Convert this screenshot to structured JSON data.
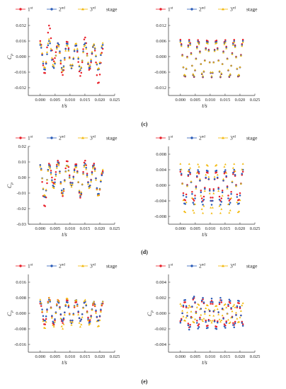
{
  "figure": {
    "row_labels": [
      "(c)",
      "(d)",
      "(e)"
    ]
  },
  "legend": {
    "entries": [
      {
        "name": "1",
        "sup": "st",
        "color": "#e8202a",
        "marker": "circle"
      },
      {
        "name": "2",
        "sup": "nd",
        "color": "#2a5bb8",
        "marker": "circle"
      },
      {
        "name": "3",
        "sup": "rd",
        "color": "#f2b705",
        "marker": "triangle"
      }
    ],
    "suffix": "stage"
  },
  "chart_data": [
    {
      "type": "scatter",
      "panel": "c-left",
      "xlabel": "t/s",
      "ylabel": "Cp",
      "grid": false,
      "xlim": [
        -0.004,
        0.025
      ],
      "ylim": [
        -0.04,
        0.04
      ],
      "xticks": [
        "0.000",
        "0.005",
        "0.010",
        "0.015",
        "0.020",
        "0.025"
      ],
      "yticks": [
        "0.032",
        "0.016",
        "0.000",
        "-0.016",
        "-0.032"
      ],
      "series": [
        {
          "name": "1st",
          "t": [
            0,
            0.0015,
            0.003,
            0.0045,
            0.006,
            0.0075,
            0.009,
            0.0105,
            0.012,
            0.0135,
            0.015,
            0.0165,
            0.018,
            0.0195,
            0.021
          ],
          "values": [
            0.016,
            -0.018,
            0.032,
            -0.005,
            0.014,
            -0.019,
            0.016,
            -0.012,
            0.012,
            -0.02,
            0.02,
            -0.014,
            0.012,
            -0.028,
            0.008
          ]
        },
        {
          "name": "2nd",
          "t": [
            0,
            0.0015,
            0.003,
            0.0045,
            0.006,
            0.0075,
            0.009,
            0.0105,
            0.012,
            0.0135,
            0.015,
            0.0165,
            0.018,
            0.0195,
            0.021
          ],
          "values": [
            0.012,
            -0.014,
            0.016,
            -0.012,
            0.014,
            -0.014,
            0.014,
            -0.012,
            0.012,
            -0.014,
            0.014,
            -0.012,
            0.012,
            -0.014,
            0.012
          ]
        },
        {
          "name": "3rd",
          "t": [
            0,
            0.0015,
            0.003,
            0.0045,
            0.006,
            0.0075,
            0.009,
            0.0105,
            0.012,
            0.0135,
            0.015,
            0.0165,
            0.018,
            0.0195,
            0.021
          ],
          "values": [
            0.014,
            -0.012,
            0.018,
            -0.01,
            0.012,
            -0.015,
            0.012,
            -0.011,
            0.014,
            -0.013,
            0.012,
            -0.01,
            0.013,
            -0.013,
            0.014
          ]
        }
      ]
    },
    {
      "type": "scatter",
      "panel": "c-right",
      "xlabel": "t/s",
      "ylabel": "",
      "grid": false,
      "xlim": [
        -0.004,
        0.025
      ],
      "ylim": [
        -0.015,
        0.015
      ],
      "xticks": [
        "0.000",
        "0.005",
        "0.010",
        "0.015",
        "0.020",
        "0.025"
      ],
      "yticks": [
        "0.012",
        "0.006",
        "0.000",
        "-0.006",
        "-0.012"
      ],
      "series": [
        {
          "name": "1st",
          "t": [
            0,
            0.0015,
            0.003,
            0.0045,
            0.006,
            0.0075,
            0.009,
            0.0105,
            0.012,
            0.0135,
            0.015,
            0.0165,
            0.018,
            0.0195,
            0.021
          ],
          "values": [
            0.0065,
            -0.008,
            0.0065,
            -0.008,
            0.0065,
            -0.008,
            0.0065,
            -0.008,
            0.0065,
            -0.008,
            0.0065,
            -0.008,
            0.0065,
            -0.008,
            0.0065
          ]
        },
        {
          "name": "2nd",
          "t": [
            0,
            0.0015,
            0.003,
            0.0045,
            0.006,
            0.0075,
            0.009,
            0.0105,
            0.012,
            0.0135,
            0.015,
            0.0165,
            0.018,
            0.0195,
            0.021
          ],
          "values": [
            0.006,
            -0.0078,
            0.006,
            -0.0078,
            0.006,
            -0.0078,
            0.006,
            -0.0078,
            0.006,
            -0.0078,
            0.006,
            -0.0078,
            0.006,
            -0.0078,
            0.006
          ]
        },
        {
          "name": "3rd",
          "t": [
            0,
            0.0015,
            0.003,
            0.0045,
            0.006,
            0.0075,
            0.009,
            0.0105,
            0.012,
            0.0135,
            0.015,
            0.0165,
            0.018,
            0.0195,
            0.021
          ],
          "values": [
            0.0055,
            -0.0075,
            0.0055,
            -0.0075,
            0.0055,
            -0.0075,
            0.0055,
            -0.0075,
            0.0055,
            -0.0075,
            0.0055,
            -0.0075,
            0.0055,
            -0.0075,
            0.0055
          ]
        }
      ]
    },
    {
      "type": "scatter",
      "panel": "d-left",
      "xlabel": "t/s",
      "ylabel": "Cp",
      "grid": false,
      "xlim": [
        -0.004,
        0.025
      ],
      "ylim": [
        -0.03,
        0.02
      ],
      "xticks": [
        "0.000",
        "0.005",
        "0.010",
        "0.015",
        "0.020",
        "0.025"
      ],
      "yticks": [
        "0.02",
        "0.01",
        "0.00",
        "-0.01",
        "-0.02",
        "-0.03"
      ],
      "series": [
        {
          "name": "1st",
          "t": [
            0,
            0.0015,
            0.003,
            0.0045,
            0.006,
            0.0075,
            0.009,
            0.0105,
            0.012,
            0.0135,
            0.015,
            0.0165,
            0.018,
            0.0195,
            0.021
          ],
          "values": [
            0.008,
            -0.019,
            0.009,
            -0.004,
            0.011,
            -0.012,
            0.011,
            -0.005,
            0.009,
            -0.013,
            0.011,
            -0.006,
            0.009,
            -0.012,
            0.004
          ]
        },
        {
          "name": "2nd",
          "t": [
            0,
            0.0015,
            0.003,
            0.0045,
            0.006,
            0.0075,
            0.009,
            0.0105,
            0.012,
            0.0135,
            0.015,
            0.0165,
            0.018,
            0.0195,
            0.021
          ],
          "values": [
            0.008,
            -0.013,
            0.008,
            -0.006,
            0.01,
            -0.01,
            0.008,
            -0.005,
            0.008,
            -0.012,
            0.009,
            -0.006,
            0.008,
            -0.011,
            0.003
          ]
        },
        {
          "name": "3rd",
          "t": [
            0,
            0.0015,
            0.003,
            0.0045,
            0.006,
            0.0075,
            0.009,
            0.0105,
            0.012,
            0.0135,
            0.015,
            0.0165,
            0.018,
            0.0195,
            0.021
          ],
          "values": [
            0.007,
            -0.012,
            0.007,
            -0.007,
            0.009,
            -0.011,
            0.008,
            -0.006,
            0.007,
            -0.011,
            0.008,
            -0.007,
            0.007,
            -0.012,
            0.005
          ]
        }
      ]
    },
    {
      "type": "scatter",
      "panel": "d-right",
      "xlabel": "t/s",
      "ylabel": "",
      "grid": false,
      "xlim": [
        -0.004,
        0.025
      ],
      "ylim": [
        -0.01,
        0.01
      ],
      "xticks": [
        "0.000",
        "0.005",
        "0.010",
        "0.015",
        "0.020",
        "0.025"
      ],
      "yticks": [
        "0.008",
        "0.004",
        "0.000",
        "-0.004",
        "-0.008"
      ],
      "series": [
        {
          "name": "1st",
          "t": [
            0,
            0.0015,
            0.003,
            0.0045,
            0.006,
            0.0075,
            0.009,
            0.0105,
            0.012,
            0.0135,
            0.015,
            0.0165,
            0.018,
            0.0195,
            0.021
          ],
          "values": [
            0.0035,
            -0.004,
            0.0035,
            -0.004,
            0.0035,
            -0.004,
            0.0035,
            -0.004,
            0.0035,
            -0.004,
            0.0035,
            -0.004,
            0.0035,
            -0.004,
            0.0035
          ]
        },
        {
          "name": "2nd",
          "t": [
            0,
            0.0015,
            0.003,
            0.0045,
            0.006,
            0.0075,
            0.009,
            0.0105,
            0.012,
            0.0135,
            0.015,
            0.0165,
            0.018,
            0.0195,
            0.021
          ],
          "values": [
            0.004,
            -0.005,
            0.004,
            -0.005,
            0.004,
            -0.005,
            0.004,
            -0.005,
            0.004,
            -0.005,
            0.004,
            -0.005,
            0.004,
            -0.005,
            0.004
          ]
        },
        {
          "name": "3rd",
          "t": [
            0,
            0.0015,
            0.003,
            0.0045,
            0.006,
            0.0075,
            0.009,
            0.0105,
            0.012,
            0.0135,
            0.015,
            0.0165,
            0.018,
            0.0195,
            0.021
          ],
          "values": [
            0.0055,
            -0.0072,
            0.0055,
            -0.0072,
            0.0055,
            -0.0072,
            0.0055,
            -0.0072,
            0.0055,
            -0.0072,
            0.0055,
            -0.0072,
            0.0055,
            -0.0072,
            0.0055
          ]
        }
      ]
    },
    {
      "type": "scatter",
      "panel": "e-left",
      "xlabel": "t/s",
      "ylabel": "Cp",
      "grid": false,
      "xlim": [
        -0.004,
        0.025
      ],
      "ylim": [
        -0.02,
        0.02
      ],
      "xticks": [
        "0.000",
        "0.005",
        "0.010",
        "0.015",
        "0.020",
        "0.025"
      ],
      "yticks": [
        "0.016",
        "0.008",
        "0.000",
        "-0.008",
        "-0.016"
      ],
      "series": [
        {
          "name": "1st",
          "t": [
            0,
            0.0015,
            0.003,
            0.0045,
            0.006,
            0.0075,
            0.009,
            0.0105,
            0.012,
            0.0135,
            0.015,
            0.0165,
            0.018,
            0.0195,
            0.021
          ],
          "values": [
            0.005,
            -0.006,
            0.008,
            -0.006,
            0.007,
            -0.005,
            0.007,
            -0.005,
            0.006,
            -0.004,
            0.006,
            -0.004,
            0.005,
            -0.004,
            0.005
          ]
        },
        {
          "name": "2nd",
          "t": [
            0,
            0.0015,
            0.003,
            0.0045,
            0.006,
            0.0075,
            0.009,
            0.0105,
            0.012,
            0.0135,
            0.015,
            0.0165,
            0.018,
            0.0195,
            0.021
          ],
          "values": [
            0.006,
            -0.004,
            0.007,
            -0.005,
            0.006,
            -0.004,
            0.006,
            -0.005,
            0.007,
            -0.004,
            0.006,
            -0.005,
            0.006,
            -0.004,
            0.006
          ]
        },
        {
          "name": "3rd",
          "t": [
            0,
            0.0015,
            0.003,
            0.0045,
            0.006,
            0.0075,
            0.009,
            0.0105,
            0.012,
            0.0135,
            0.015,
            0.0165,
            0.018,
            0.0195,
            0.021
          ],
          "values": [
            0.007,
            -0.008,
            0.008,
            -0.007,
            0.007,
            -0.008,
            0.008,
            -0.006,
            0.007,
            -0.007,
            0.007,
            -0.006,
            0.006,
            -0.007,
            0.006
          ]
        }
      ]
    },
    {
      "type": "scatter",
      "panel": "e-right",
      "xlabel": "t/s",
      "ylabel": "Cp",
      "grid": false,
      "xlim": [
        -0.004,
        0.025
      ],
      "ylim": [
        -0.005,
        0.005
      ],
      "xticks": [
        "0.000",
        "0.005",
        "0.010",
        "0.015",
        "0.020",
        "0.025"
      ],
      "yticks": [
        "0.004",
        "0.002",
        "0.000",
        "-0.002",
        "-0.004"
      ],
      "series": [
        {
          "name": "1st",
          "t": [
            0,
            0.0015,
            0.003,
            0.0045,
            0.006,
            0.0075,
            0.009,
            0.0105,
            0.012,
            0.0135,
            0.015,
            0.0165,
            0.018,
            0.0195,
            0.021
          ],
          "values": [
            -0.001,
            0.0015,
            -0.0018,
            0.002,
            -0.0016,
            0.0018,
            -0.0017,
            0.0016,
            -0.0018,
            0.0017,
            -0.0016,
            0.0015,
            -0.0015,
            0.0014,
            -0.0014
          ]
        },
        {
          "name": "2nd",
          "t": [
            0,
            0.0015,
            0.003,
            0.0045,
            0.006,
            0.0075,
            0.009,
            0.0105,
            0.012,
            0.0135,
            0.015,
            0.0165,
            0.018,
            0.0195,
            0.021
          ],
          "values": [
            -0.0012,
            0.0018,
            -0.0021,
            0.0022,
            -0.002,
            0.002,
            -0.002,
            0.0019,
            -0.0021,
            0.002,
            -0.0019,
            0.0018,
            -0.0018,
            0.0017,
            -0.0016
          ]
        },
        {
          "name": "3rd",
          "t": [
            0,
            0.0015,
            0.003,
            0.0045,
            0.006,
            0.0075,
            0.009,
            0.0105,
            0.012,
            0.0135,
            0.015,
            0.0165,
            0.018,
            0.0195,
            0.021
          ],
          "values": [
            0.0012,
            -0.001,
            0.001,
            -0.0012,
            0.0012,
            -0.001,
            0.0011,
            -0.0012,
            0.001,
            -0.0011,
            0.0012,
            -0.0013,
            0.0011,
            -0.0012,
            0.0013
          ]
        }
      ]
    }
  ]
}
